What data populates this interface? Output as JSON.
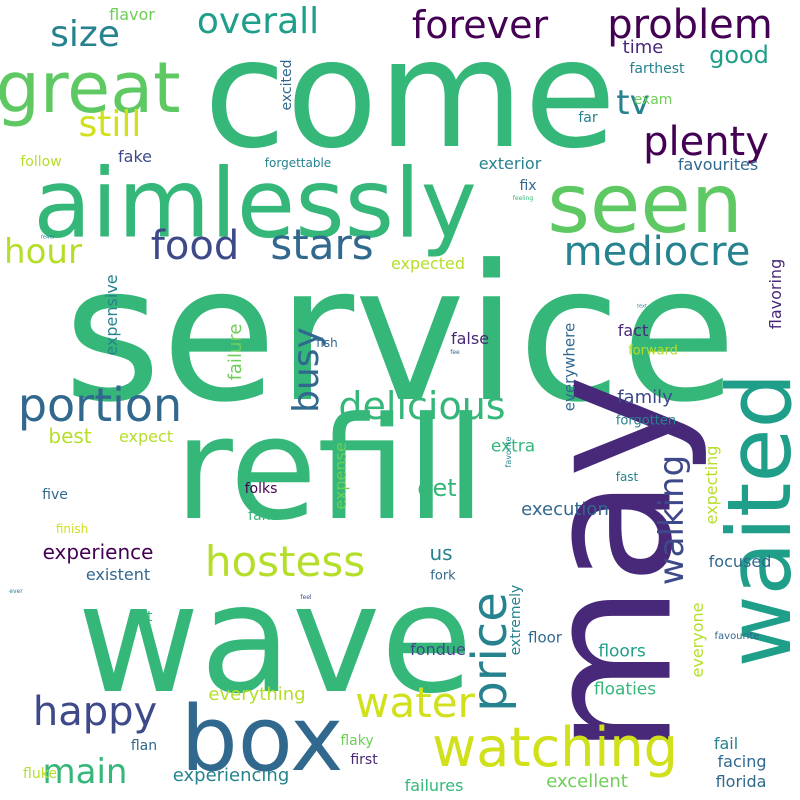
{
  "colors": {
    "background": "#ffffff",
    "palette": [
      "#440154",
      "#482878",
      "#3e4989",
      "#31688e",
      "#26828e",
      "#1f9e89",
      "#35b779",
      "#6ece58",
      "#b5de2b",
      "#fde725"
    ]
  },
  "words": [
    {
      "text": "service",
      "color": "#35b779",
      "rotate": false
    },
    {
      "text": "come",
      "color": "#35b779",
      "rotate": false
    },
    {
      "text": "wave",
      "color": "#35b779",
      "rotate": false
    },
    {
      "text": "refill",
      "color": "#35b779",
      "rotate": false
    },
    {
      "text": "may",
      "color": "#482878",
      "rotate": true
    },
    {
      "text": "aimlessly",
      "color": "#35b779",
      "rotate": false
    },
    {
      "text": "seen",
      "color": "#5ec962",
      "rotate": false
    },
    {
      "text": "waited",
      "color": "#1f9e89",
      "rotate": true
    },
    {
      "text": "box",
      "color": "#31688e",
      "rotate": false
    },
    {
      "text": "watching",
      "color": "#d0e11c",
      "rotate": false
    },
    {
      "text": "great",
      "color": "#5ec962",
      "rotate": false
    },
    {
      "text": "hostess",
      "color": "#b5de2b",
      "rotate": false
    },
    {
      "text": "price",
      "color": "#26828e",
      "rotate": true
    },
    {
      "text": "portion",
      "color": "#31688e",
      "rotate": false
    },
    {
      "text": "water",
      "color": "#d0e11c",
      "rotate": false
    },
    {
      "text": "stars",
      "color": "#31688e",
      "rotate": false
    },
    {
      "text": "food",
      "color": "#3e4989",
      "rotate": false
    },
    {
      "text": "mediocre",
      "color": "#26828e",
      "rotate": false
    },
    {
      "text": "plenty",
      "color": "#440154",
      "rotate": false
    },
    {
      "text": "delicious",
      "color": "#35b779",
      "rotate": false
    },
    {
      "text": "forever",
      "color": "#440154",
      "rotate": false
    },
    {
      "text": "problem",
      "color": "#440154",
      "rotate": false
    },
    {
      "text": "overall",
      "color": "#1f9e89",
      "rotate": false
    },
    {
      "text": "happy",
      "color": "#3e4989",
      "rotate": false
    },
    {
      "text": "main",
      "color": "#35b779",
      "rotate": false
    },
    {
      "text": "walking",
      "color": "#3e4989",
      "rotate": true
    },
    {
      "text": "busy",
      "color": "#31688e",
      "rotate": true
    },
    {
      "text": "size",
      "color": "#26828e",
      "rotate": false
    },
    {
      "text": "still",
      "color": "#d0e11c",
      "rotate": false
    },
    {
      "text": "hour",
      "color": "#b5de2b",
      "rotate": false
    },
    {
      "text": "tv",
      "color": "#26828e",
      "rotate": false
    },
    {
      "text": "good",
      "color": "#1f9e89",
      "rotate": false
    },
    {
      "text": "experience",
      "color": "#440154",
      "rotate": false
    },
    {
      "text": "get",
      "color": "#35b779",
      "rotate": false
    },
    {
      "text": "us",
      "color": "#26828e",
      "rotate": false
    },
    {
      "text": "best",
      "color": "#b5de2b",
      "rotate": false
    },
    {
      "text": "family",
      "color": "#3e4989",
      "rotate": false
    },
    {
      "text": "execution",
      "color": "#31688e",
      "rotate": false
    },
    {
      "text": "experiencing",
      "color": "#26828e",
      "rotate": false
    },
    {
      "text": "excellent",
      "color": "#6ece58",
      "rotate": false
    },
    {
      "text": "everything",
      "color": "#b5de2b",
      "rotate": false
    },
    {
      "text": "floaties",
      "color": "#35b779",
      "rotate": false
    },
    {
      "text": "floors",
      "color": "#1f9e89",
      "rotate": false
    },
    {
      "text": "fondue",
      "color": "#3e4989",
      "rotate": false
    },
    {
      "text": "failures",
      "color": "#35b779",
      "rotate": false
    },
    {
      "text": "facing",
      "color": "#31688e",
      "rotate": false
    },
    {
      "text": "florida",
      "color": "#31688e",
      "rotate": false
    },
    {
      "text": "fail",
      "color": "#26828e",
      "rotate": false
    },
    {
      "text": "first",
      "color": "#482878",
      "rotate": false
    },
    {
      "text": "flaky",
      "color": "#6ece58",
      "rotate": false
    },
    {
      "text": "flan",
      "color": "#31688e",
      "rotate": false
    },
    {
      "text": "fluke",
      "color": "#b5de2b",
      "rotate": false
    },
    {
      "text": "existent",
      "color": "#31688e",
      "rotate": false
    },
    {
      "text": "floor",
      "color": "#31688e",
      "rotate": false
    },
    {
      "text": "focused",
      "color": "#31688e",
      "rotate": false
    },
    {
      "text": "fork",
      "color": "#31688e",
      "rotate": false
    },
    {
      "text": "felt",
      "color": "#35b779",
      "rotate": false
    },
    {
      "text": "five",
      "color": "#31688e",
      "rotate": false
    },
    {
      "text": "fans",
      "color": "#35b779",
      "rotate": false
    },
    {
      "text": "folks",
      "color": "#440154",
      "rotate": false
    },
    {
      "text": "extra",
      "color": "#35b779",
      "rotate": false
    },
    {
      "text": "expect",
      "color": "#b5de2b",
      "rotate": false
    },
    {
      "text": "fact",
      "color": "#482878",
      "rotate": false
    },
    {
      "text": "false",
      "color": "#482878",
      "rotate": false
    },
    {
      "text": "forgotten",
      "color": "#26828e",
      "rotate": false
    },
    {
      "text": "forward",
      "color": "#b5de2b",
      "rotate": false
    },
    {
      "text": "fish",
      "color": "#31688e",
      "rotate": false
    },
    {
      "text": "fast",
      "color": "#26828e",
      "rotate": false
    },
    {
      "text": "expected",
      "color": "#b5de2b",
      "rotate": false
    },
    {
      "text": "fix",
      "color": "#31688e",
      "rotate": false
    },
    {
      "text": "exterior",
      "color": "#26828e",
      "rotate": false
    },
    {
      "text": "fake",
      "color": "#3e4989",
      "rotate": false
    },
    {
      "text": "follow",
      "color": "#b5de2b",
      "rotate": false
    },
    {
      "text": "forgettable",
      "color": "#26828e",
      "rotate": false
    },
    {
      "text": "favourites",
      "color": "#31688e",
      "rotate": false
    },
    {
      "text": "far",
      "color": "#26828e",
      "rotate": false
    },
    {
      "text": "exam",
      "color": "#6ece58",
      "rotate": false
    },
    {
      "text": "farthest",
      "color": "#26828e",
      "rotate": false
    },
    {
      "text": "time",
      "color": "#482878",
      "rotate": false
    },
    {
      "text": "flavor",
      "color": "#6ece58",
      "rotate": false
    },
    {
      "text": "finish",
      "color": "#d0e11c",
      "rotate": false
    },
    {
      "text": "favourite",
      "color": "#31688e",
      "rotate": false
    },
    {
      "text": "expensive",
      "color": "#26828e",
      "rotate": true
    },
    {
      "text": "failure",
      "color": "#6ece58",
      "rotate": true
    },
    {
      "text": "expense",
      "color": "#6ece58",
      "rotate": true
    },
    {
      "text": "everywhere",
      "color": "#31688e",
      "rotate": true
    },
    {
      "text": "extremely",
      "color": "#26828e",
      "rotate": true
    },
    {
      "text": "everyone",
      "color": "#b5de2b",
      "rotate": true
    },
    {
      "text": "expecting",
      "color": "#b5de2b",
      "rotate": true
    },
    {
      "text": "flavoring",
      "color": "#482878",
      "rotate": true
    },
    {
      "text": "excited",
      "color": "#31688e",
      "rotate": true
    },
    {
      "text": "favorite",
      "color": "#26828e",
      "rotate": true
    },
    {
      "text": "feeling",
      "color": "#35b779",
      "rotate": false
    },
    {
      "text": "fee",
      "color": "#31688e",
      "rotate": false
    },
    {
      "text": "feel",
      "color": "#3e4989",
      "rotate": false
    },
    {
      "text": "ever",
      "color": "#26828e",
      "rotate": false
    },
    {
      "text": "text",
      "color": "#26828e",
      "rotate": false
    },
    {
      "text": "fewer",
      "color": "#26828e",
      "rotate": false
    }
  ]
}
